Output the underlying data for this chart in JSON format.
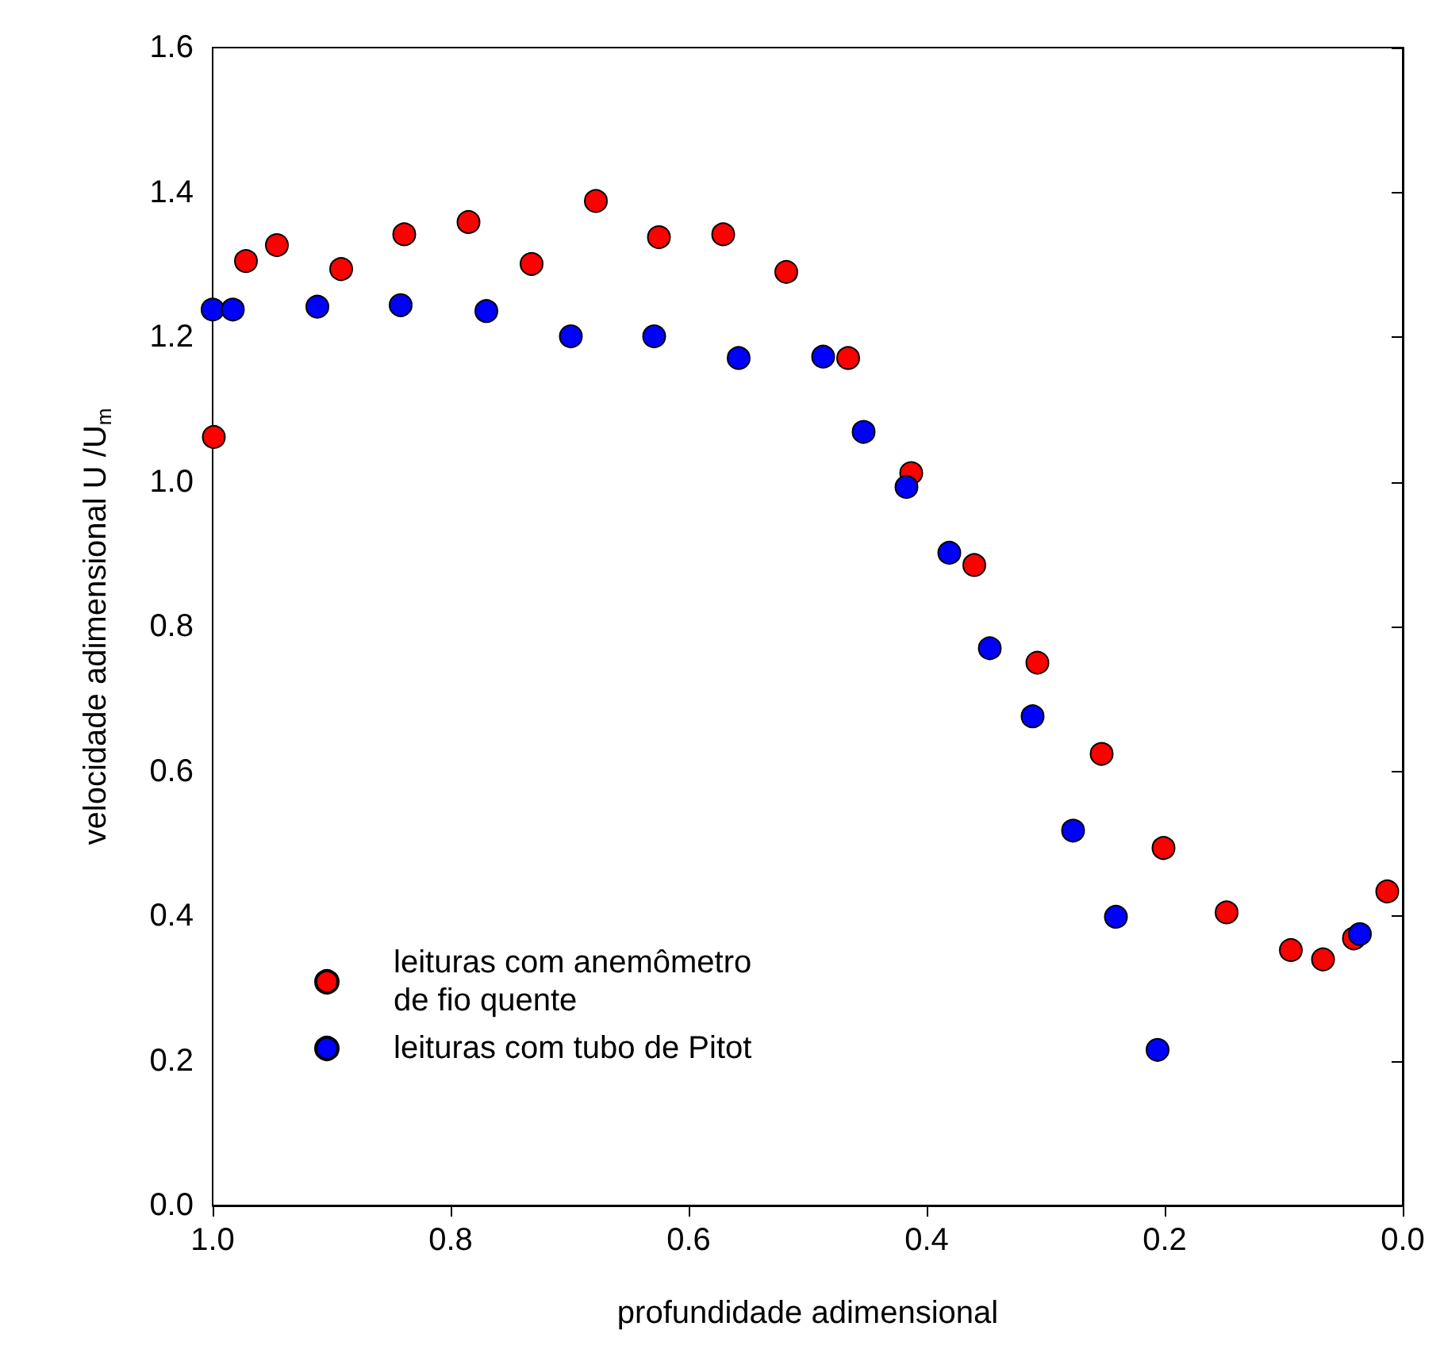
{
  "chart_data": {
    "type": "scatter",
    "xlabel": "profundidade adimensional",
    "ylabel": "velocidade adimensional U /U$_{m}$",
    "xlim": [
      1.0,
      0.0
    ],
    "xticks": [
      {
        "value": 1,
        "label": "1.0"
      },
      {
        "value": 0.8,
        "label": "0.8"
      },
      {
        "value": 0.6,
        "label": "0.6"
      },
      {
        "value": 0.4,
        "label": "0.4"
      },
      {
        "value": 0.2,
        "label": "0.2"
      },
      {
        "value": 0,
        "label": "0.0"
      }
    ],
    "ylim": [
      0,
      1.6
    ],
    "yticks": [
      {
        "value": 0,
        "label": "0.0"
      },
      {
        "value": 0.2,
        "label": "0.2"
      },
      {
        "value": 0.4,
        "label": "0.4"
      },
      {
        "value": 0.6,
        "label": "0.6"
      },
      {
        "value": 0.8,
        "label": "0.8"
      },
      {
        "value": 1,
        "label": "1.0"
      },
      {
        "value": 1.2,
        "label": "1.2"
      },
      {
        "value": 1.4,
        "label": "1.4"
      },
      {
        "value": 1.6,
        "label": "1.6"
      }
    ],
    "grid": false,
    "legend": "bottom left",
    "marker": "circle",
    "series": [
      {
        "name": "leituras com anemômetro\nde fio quente",
        "color": "#ff0000",
        "x": [
          0.999,
          0.972,
          0.946,
          0.892,
          0.839,
          0.785,
          0.732,
          0.678,
          0.625,
          0.571,
          0.518,
          0.466,
          0.413,
          0.36,
          0.307,
          0.253,
          0.201,
          0.148,
          0.094,
          0.067,
          0.041,
          0.013
        ],
        "values": [
          1.062,
          1.305,
          1.327,
          1.294,
          1.342,
          1.359,
          1.301,
          1.388,
          1.338,
          1.342,
          1.29,
          1.171,
          1.012,
          0.885,
          0.75,
          0.624,
          0.494,
          0.405,
          0.353,
          0.34,
          0.369,
          0.434
        ]
      },
      {
        "name": "leituras com tubo de Pitot",
        "color": "#0000ff",
        "x": [
          1.0,
          0.983,
          0.912,
          0.842,
          0.77,
          0.699,
          0.629,
          0.558,
          0.487,
          0.453,
          0.417,
          0.381,
          0.347,
          0.311,
          0.277,
          0.241,
          0.206,
          0.036
        ],
        "values": [
          1.238,
          1.238,
          1.242,
          1.244,
          1.236,
          1.201,
          1.201,
          1.171,
          1.173,
          1.069,
          0.993,
          0.902,
          0.77,
          0.676,
          0.518,
          0.399,
          0.215,
          0.375
        ]
      }
    ]
  }
}
